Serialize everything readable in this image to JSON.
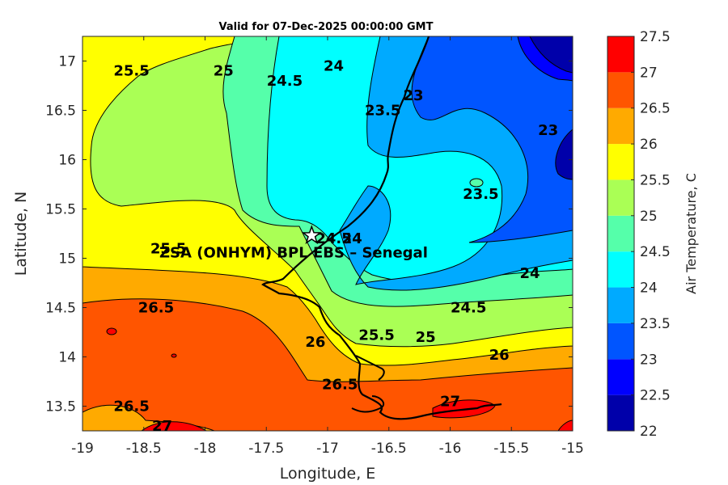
{
  "chart_data": {
    "type": "heatmap",
    "title": "Valid for 07-Dec-2025 00:00:00 GMT",
    "xlabel": "Longitude, E",
    "ylabel": "Latitude, N",
    "colorbar_label": "Air Temperature, C",
    "xlim": [
      -19,
      -15
    ],
    "ylim": [
      13.25,
      17.25
    ],
    "x_ticks": [
      -19,
      -18.5,
      -18,
      -17.5,
      -17,
      -16.5,
      -16,
      -15.5,
      -15
    ],
    "x_tick_labels": [
      "-19",
      "-18.5",
      "-18",
      "-17.5",
      "-17",
      "-16.5",
      "-16",
      "-15.5",
      "-15"
    ],
    "y_ticks": [
      13.5,
      14,
      14.5,
      15,
      15.5,
      16,
      16.5,
      17
    ],
    "y_tick_labels": [
      "13.5",
      "14",
      "14.5",
      "15",
      "15.5",
      "16",
      "16.5",
      "17"
    ],
    "colorbar": {
      "levels": [
        22,
        22.5,
        23,
        23.5,
        24,
        24.5,
        25,
        25.5,
        26,
        26.5,
        27,
        27.5
      ],
      "level_labels": [
        "22",
        "22.5",
        "23",
        "23.5",
        "24",
        "24.5",
        "25",
        "25.5",
        "26",
        "26.5",
        "27",
        "27.5"
      ],
      "colors": [
        "#0000aa",
        "#0000ff",
        "#0055ff",
        "#00aaff",
        "#00ffff",
        "#55ffaa",
        "#aaff55",
        "#ffff00",
        "#ffaa00",
        "#ff5500",
        "#ff0000",
        "#aa0000"
      ]
    },
    "contour_labels": [
      {
        "text": "25.5",
        "lon": -18.6,
        "lat": 16.9
      },
      {
        "text": "25",
        "lon": -17.85,
        "lat": 16.9
      },
      {
        "text": "24.5",
        "lon": -17.35,
        "lat": 16.8
      },
      {
        "text": "24",
        "lon": -16.95,
        "lat": 16.95
      },
      {
        "text": "23.5",
        "lon": -16.55,
        "lat": 16.5
      },
      {
        "text": "23",
        "lon": -16.3,
        "lat": 16.65
      },
      {
        "text": "23",
        "lon": -15.2,
        "lat": 16.3
      },
      {
        "text": "23.5",
        "lon": -15.75,
        "lat": 15.65
      },
      {
        "text": "24.5",
        "lon": -16.95,
        "lat": 15.2
      },
      {
        "text": "24",
        "lon": -16.8,
        "lat": 15.2
      },
      {
        "text": "25.5",
        "lon": -18.3,
        "lat": 15.1
      },
      {
        "text": "24",
        "lon": -15.35,
        "lat": 14.85
      },
      {
        "text": "24.5",
        "lon": -15.85,
        "lat": 14.5
      },
      {
        "text": "25",
        "lon": -16.2,
        "lat": 14.2
      },
      {
        "text": "26.5",
        "lon": -18.4,
        "lat": 14.5
      },
      {
        "text": "26",
        "lon": -17.1,
        "lat": 14.15
      },
      {
        "text": "25.5",
        "lon": -16.6,
        "lat": 14.22
      },
      {
        "text": "26",
        "lon": -15.6,
        "lat": 14.02
      },
      {
        "text": "26.5",
        "lon": -16.9,
        "lat": 13.72
      },
      {
        "text": "26.5",
        "lon": -18.6,
        "lat": 13.5
      },
      {
        "text": "27",
        "lon": -18.35,
        "lat": 13.3
      },
      {
        "text": "27",
        "lon": -16.0,
        "lat": 13.55
      }
    ],
    "station": {
      "label": "ZSA (ONHYM) BPL EBS  – Senegal",
      "lon": -17.13,
      "lat": 15.23,
      "marker": "star"
    }
  }
}
